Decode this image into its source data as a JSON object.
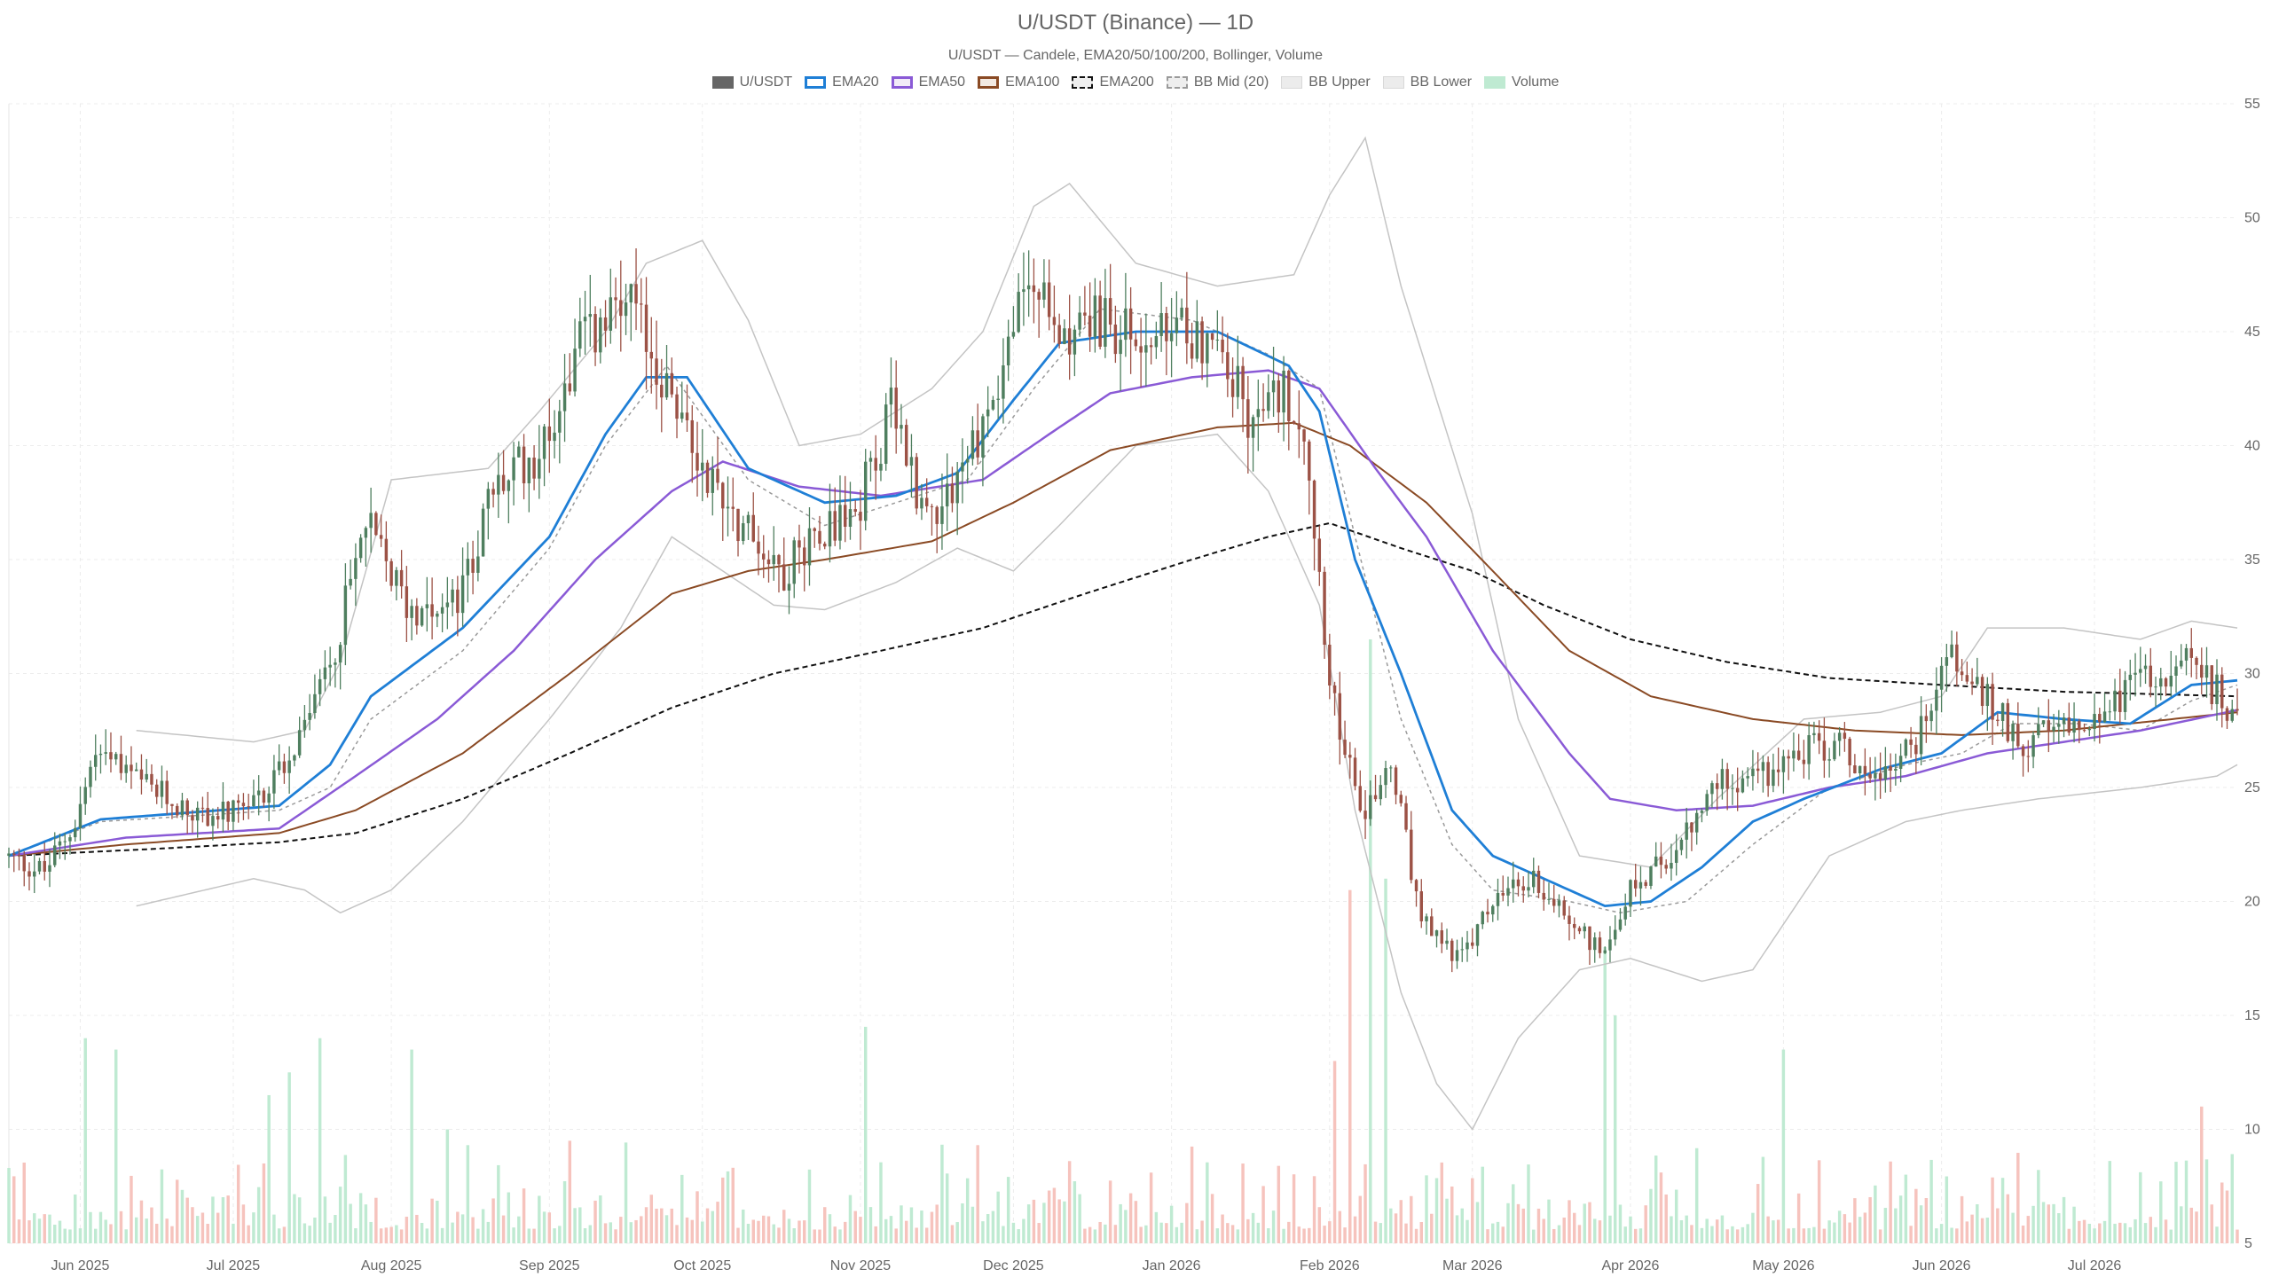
{
  "chart_data": {
    "type": "candlestick",
    "title": "U/USDT (Binance) — 1D",
    "subtitle": "U/USDT — Candele, EMA20/50/100/200, Bollinger, Volume",
    "legend": [
      {
        "name": "U/USDT",
        "color": "#666666",
        "style": "fill"
      },
      {
        "name": "EMA20",
        "color": "#1f7fd6",
        "style": "line"
      },
      {
        "name": "EMA50",
        "color": "#8a5ad6",
        "style": "line"
      },
      {
        "name": "EMA100",
        "color": "#8a4a24",
        "style": "line"
      },
      {
        "name": "EMA200",
        "color": "#111111",
        "style": "dash"
      },
      {
        "name": "BB Mid (20)",
        "color": "#9a9a9a",
        "style": "dash"
      },
      {
        "name": "BB Upper",
        "color": "#bbbbbb",
        "style": "line"
      },
      {
        "name": "BB Lower",
        "color": "#bbbbbb",
        "style": "line"
      },
      {
        "name": "Volume",
        "color": "#bfead2",
        "style": "fill"
      }
    ],
    "x_start": "2025-05-18",
    "x_end": "2026-07-29",
    "xticks": [
      "Jun 2025",
      "Jul 2025",
      "Aug 2025",
      "Sep 2025",
      "Oct 2025",
      "Nov 2025",
      "Dec 2025",
      "Jan 2026",
      "Feb 2026",
      "Mar 2026",
      "Apr 2026",
      "May 2026",
      "Jun 2026",
      "Jul 2026"
    ],
    "xtick_dates": [
      "2025-06-01",
      "2025-07-01",
      "2025-08-01",
      "2025-09-01",
      "2025-10-01",
      "2025-11-01",
      "2025-12-01",
      "2026-01-01",
      "2026-02-01",
      "2026-03-01",
      "2026-04-01",
      "2026-05-01",
      "2026-06-01",
      "2026-07-01"
    ],
    "yticks": [
      5,
      10,
      15,
      20,
      25,
      30,
      35,
      40,
      45,
      50,
      55
    ],
    "ylim": [
      5,
      55
    ],
    "grid": true,
    "legend_position": "top",
    "colors": {
      "up": "#4f7f5f",
      "down": "#9c5246",
      "vol_up": "#bfead2",
      "vol_down": "#f6c3bd"
    },
    "price_anchors": [
      [
        "2025-05-18",
        22.0
      ],
      [
        "2025-05-26",
        21.3
      ],
      [
        "2025-06-01",
        23.5
      ],
      [
        "2025-06-05",
        26.4
      ],
      [
        "2025-06-15",
        25.0
      ],
      [
        "2025-06-25",
        23.8
      ],
      [
        "2025-07-05",
        23.8
      ],
      [
        "2025-07-12",
        26.0
      ],
      [
        "2025-07-20",
        29.5
      ],
      [
        "2025-07-28",
        36.5
      ],
      [
        "2025-08-05",
        33.0
      ],
      [
        "2025-08-15",
        33.0
      ],
      [
        "2025-08-22",
        38.0
      ],
      [
        "2025-09-01",
        40.0
      ],
      [
        "2025-09-08",
        44.5
      ],
      [
        "2025-09-18",
        46.0
      ],
      [
        "2025-09-24",
        43.0
      ],
      [
        "2025-10-01",
        39.5
      ],
      [
        "2025-10-10",
        36.5
      ],
      [
        "2025-10-18",
        34.5
      ],
      [
        "2025-10-25",
        36.5
      ],
      [
        "2025-11-01",
        37.0
      ],
      [
        "2025-11-08",
        41.5
      ],
      [
        "2025-11-15",
        37.0
      ],
      [
        "2025-11-22",
        39.0
      ],
      [
        "2025-11-28",
        42.0
      ],
      [
        "2025-12-05",
        47.5
      ],
      [
        "2025-12-10",
        45.0
      ],
      [
        "2025-12-18",
        45.5
      ],
      [
        "2025-12-28",
        44.5
      ],
      [
        "2026-01-06",
        45.0
      ],
      [
        "2026-01-12",
        44.0
      ],
      [
        "2026-01-18",
        41.0
      ],
      [
        "2026-01-24",
        42.5
      ],
      [
        "2026-01-28",
        41.0
      ],
      [
        "2026-02-02",
        30.0
      ],
      [
        "2026-02-08",
        23.5
      ],
      [
        "2026-02-14",
        26.0
      ],
      [
        "2026-02-20",
        19.0
      ],
      [
        "2026-02-28",
        17.5
      ],
      [
        "2026-03-06",
        20.0
      ],
      [
        "2026-03-14",
        21.0
      ],
      [
        "2026-03-22",
        19.0
      ],
      [
        "2026-03-27",
        17.8
      ],
      [
        "2026-04-02",
        20.5
      ],
      [
        "2026-04-12",
        22.5
      ],
      [
        "2026-04-20",
        25.5
      ],
      [
        "2026-04-28",
        25.5
      ],
      [
        "2026-05-05",
        26.5
      ],
      [
        "2026-05-12",
        27.0
      ],
      [
        "2026-05-20",
        25.5
      ],
      [
        "2026-05-28",
        27.0
      ],
      [
        "2026-06-03",
        31.0
      ],
      [
        "2026-06-10",
        29.0
      ],
      [
        "2026-06-18",
        27.0
      ],
      [
        "2026-06-26",
        27.5
      ],
      [
        "2026-07-05",
        28.5
      ],
      [
        "2026-07-12",
        30.0
      ],
      [
        "2026-07-20",
        30.5
      ],
      [
        "2026-07-29",
        28.5
      ]
    ],
    "ema20": [
      [
        "2025-05-18",
        22.0
      ],
      [
        "2025-06-05",
        23.6
      ],
      [
        "2025-07-10",
        24.2
      ],
      [
        "2025-07-20",
        26.0
      ],
      [
        "2025-07-28",
        29.0
      ],
      [
        "2025-08-15",
        32.0
      ],
      [
        "2025-09-01",
        36.0
      ],
      [
        "2025-09-12",
        40.5
      ],
      [
        "2025-09-20",
        43.0
      ],
      [
        "2025-09-28",
        43.0
      ],
      [
        "2025-10-10",
        39.0
      ],
      [
        "2025-10-25",
        37.5
      ],
      [
        "2025-11-08",
        37.8
      ],
      [
        "2025-11-20",
        38.8
      ],
      [
        "2025-12-01",
        42.0
      ],
      [
        "2025-12-10",
        44.5
      ],
      [
        "2025-12-25",
        45.0
      ],
      [
        "2026-01-10",
        45.0
      ],
      [
        "2026-01-24",
        43.5
      ],
      [
        "2026-01-30",
        41.5
      ],
      [
        "2026-02-06",
        35.0
      ],
      [
        "2026-02-15",
        30.0
      ],
      [
        "2026-02-25",
        24.0
      ],
      [
        "2026-03-05",
        22.0
      ],
      [
        "2026-03-15",
        21.0
      ],
      [
        "2026-03-27",
        19.8
      ],
      [
        "2026-04-05",
        20.0
      ],
      [
        "2026-04-15",
        21.5
      ],
      [
        "2026-04-25",
        23.5
      ],
      [
        "2026-05-05",
        24.5
      ],
      [
        "2026-05-20",
        25.8
      ],
      [
        "2026-06-01",
        26.5
      ],
      [
        "2026-06-12",
        28.3
      ],
      [
        "2026-06-25",
        28.0
      ],
      [
        "2026-07-08",
        27.8
      ],
      [
        "2026-07-20",
        29.5
      ],
      [
        "2026-07-29",
        29.7
      ]
    ],
    "ema50": [
      [
        "2025-05-18",
        22.0
      ],
      [
        "2025-06-10",
        22.8
      ],
      [
        "2025-07-10",
        23.2
      ],
      [
        "2025-07-25",
        25.5
      ],
      [
        "2025-08-10",
        28.0
      ],
      [
        "2025-08-25",
        31.0
      ],
      [
        "2025-09-10",
        35.0
      ],
      [
        "2025-09-25",
        38.0
      ],
      [
        "2025-10-05",
        39.3
      ],
      [
        "2025-10-20",
        38.2
      ],
      [
        "2025-11-05",
        37.8
      ],
      [
        "2025-11-25",
        38.5
      ],
      [
        "2025-12-08",
        40.5
      ],
      [
        "2025-12-20",
        42.3
      ],
      [
        "2026-01-05",
        43.0
      ],
      [
        "2026-01-20",
        43.3
      ],
      [
        "2026-01-30",
        42.5
      ],
      [
        "2026-02-10",
        39.0
      ],
      [
        "2026-02-20",
        36.0
      ],
      [
        "2026-03-05",
        31.0
      ],
      [
        "2026-03-20",
        26.5
      ],
      [
        "2026-03-28",
        24.5
      ],
      [
        "2026-04-10",
        24.0
      ],
      [
        "2026-04-25",
        24.2
      ],
      [
        "2026-05-10",
        25.0
      ],
      [
        "2026-05-25",
        25.5
      ],
      [
        "2026-06-10",
        26.5
      ],
      [
        "2026-06-25",
        27.0
      ],
      [
        "2026-07-10",
        27.5
      ],
      [
        "2026-07-29",
        28.4
      ]
    ],
    "ema100": [
      [
        "2025-05-18",
        22.0
      ],
      [
        "2025-06-10",
        22.5
      ],
      [
        "2025-07-10",
        23.0
      ],
      [
        "2025-07-25",
        24.0
      ],
      [
        "2025-08-15",
        26.5
      ],
      [
        "2025-09-05",
        30.0
      ],
      [
        "2025-09-25",
        33.5
      ],
      [
        "2025-10-10",
        34.5
      ],
      [
        "2025-10-25",
        35.0
      ],
      [
        "2025-11-15",
        35.8
      ],
      [
        "2025-12-01",
        37.5
      ],
      [
        "2025-12-20",
        39.8
      ],
      [
        "2026-01-10",
        40.8
      ],
      [
        "2026-01-25",
        41.0
      ],
      [
        "2026-02-05",
        40.0
      ],
      [
        "2026-02-20",
        37.5
      ],
      [
        "2026-03-05",
        34.5
      ],
      [
        "2026-03-20",
        31.0
      ],
      [
        "2026-04-05",
        29.0
      ],
      [
        "2026-04-25",
        28.0
      ],
      [
        "2026-05-15",
        27.5
      ],
      [
        "2026-06-05",
        27.3
      ],
      [
        "2026-06-25",
        27.5
      ],
      [
        "2026-07-29",
        28.3
      ]
    ],
    "ema200": [
      [
        "2025-05-18",
        22.0
      ],
      [
        "2025-06-15",
        22.3
      ],
      [
        "2025-07-10",
        22.6
      ],
      [
        "2025-07-25",
        23.0
      ],
      [
        "2025-08-15",
        24.5
      ],
      [
        "2025-09-05",
        26.5
      ],
      [
        "2025-09-25",
        28.5
      ],
      [
        "2025-10-15",
        30.0
      ],
      [
        "2025-11-05",
        31.0
      ],
      [
        "2025-11-25",
        32.0
      ],
      [
        "2025-12-15",
        33.5
      ],
      [
        "2026-01-05",
        35.0
      ],
      [
        "2026-01-20",
        36.0
      ],
      [
        "2026-02-01",
        36.6
      ],
      [
        "2026-02-15",
        35.5
      ],
      [
        "2026-03-01",
        34.5
      ],
      [
        "2026-03-15",
        33.0
      ],
      [
        "2026-04-01",
        31.5
      ],
      [
        "2026-04-20",
        30.5
      ],
      [
        "2026-05-10",
        29.8
      ],
      [
        "2026-06-01",
        29.5
      ],
      [
        "2026-06-25",
        29.2
      ],
      [
        "2026-07-29",
        29.0
      ]
    ],
    "bb_mid": [
      [
        "2025-05-18",
        22.0
      ],
      [
        "2025-06-05",
        23.5
      ],
      [
        "2025-07-10",
        24.0
      ],
      [
        "2025-07-20",
        25.0
      ],
      [
        "2025-07-28",
        28.0
      ],
      [
        "2025-08-15",
        31.0
      ],
      [
        "2025-09-01",
        35.5
      ],
      [
        "2025-09-12",
        40.0
      ],
      [
        "2025-09-24",
        43.5
      ],
      [
        "2025-10-10",
        38.5
      ],
      [
        "2025-10-25",
        36.5
      ],
      [
        "2025-11-08",
        37.5
      ],
      [
        "2025-11-22",
        38.5
      ],
      [
        "2025-12-05",
        42.5
      ],
      [
        "2025-12-18",
        46.0
      ],
      [
        "2026-01-05",
        45.5
      ],
      [
        "2026-01-20",
        44.0
      ],
      [
        "2026-01-30",
        42.5
      ],
      [
        "2026-02-06",
        36.0
      ],
      [
        "2026-02-15",
        28.0
      ],
      [
        "2026-02-25",
        22.5
      ],
      [
        "2026-03-05",
        20.5
      ],
      [
        "2026-03-20",
        20.0
      ],
      [
        "2026-03-30",
        19.5
      ],
      [
        "2026-04-12",
        20.0
      ],
      [
        "2026-04-25",
        22.5
      ],
      [
        "2026-05-10",
        25.0
      ],
      [
        "2026-05-25",
        26.0
      ],
      [
        "2026-06-05",
        26.5
      ],
      [
        "2026-06-15",
        27.8
      ],
      [
        "2026-06-28",
        27.8
      ],
      [
        "2026-07-10",
        27.5
      ],
      [
        "2026-07-20",
        28.8
      ],
      [
        "2026-07-29",
        29.5
      ]
    ],
    "bb_upper": [
      [
        "2025-06-12",
        27.5
      ],
      [
        "2025-07-05",
        27.0
      ],
      [
        "2025-07-15",
        27.5
      ],
      [
        "2025-07-22",
        30.5
      ],
      [
        "2025-08-01",
        38.5
      ],
      [
        "2025-08-20",
        39.0
      ],
      [
        "2025-08-30",
        41.5
      ],
      [
        "2025-09-12",
        45.0
      ],
      [
        "2025-09-20",
        48.0
      ],
      [
        "2025-10-01",
        49.0
      ],
      [
        "2025-10-10",
        45.5
      ],
      [
        "2025-10-20",
        40.0
      ],
      [
        "2025-11-01",
        40.5
      ],
      [
        "2025-11-15",
        42.5
      ],
      [
        "2025-11-25",
        45.0
      ],
      [
        "2025-12-05",
        50.5
      ],
      [
        "2025-12-12",
        51.5
      ],
      [
        "2025-12-25",
        48.0
      ],
      [
        "2026-01-10",
        47.0
      ],
      [
        "2026-01-25",
        47.5
      ],
      [
        "2026-02-01",
        51.0
      ],
      [
        "2026-02-08",
        53.5
      ],
      [
        "2026-02-15",
        47.0
      ],
      [
        "2026-02-22",
        42.0
      ],
      [
        "2026-03-01",
        37.0
      ],
      [
        "2026-03-10",
        28.0
      ],
      [
        "2026-03-22",
        22.0
      ],
      [
        "2026-04-05",
        21.5
      ],
      [
        "2026-04-18",
        24.5
      ],
      [
        "2026-05-05",
        28.0
      ],
      [
        "2026-05-20",
        28.3
      ],
      [
        "2026-06-01",
        29.0
      ],
      [
        "2026-06-10",
        32.0
      ],
      [
        "2026-06-25",
        32.0
      ],
      [
        "2026-07-10",
        31.5
      ],
      [
        "2026-07-20",
        32.3
      ],
      [
        "2026-07-29",
        32.0
      ]
    ],
    "bb_lower": [
      [
        "2025-06-12",
        19.8
      ],
      [
        "2025-07-05",
        21.0
      ],
      [
        "2025-07-15",
        20.5
      ],
      [
        "2025-07-22",
        19.5
      ],
      [
        "2025-08-01",
        20.5
      ],
      [
        "2025-08-15",
        23.5
      ],
      [
        "2025-09-01",
        28.0
      ],
      [
        "2025-09-15",
        32.0
      ],
      [
        "2025-09-25",
        36.0
      ],
      [
        "2025-10-05",
        34.5
      ],
      [
        "2025-10-15",
        33.0
      ],
      [
        "2025-10-25",
        32.8
      ],
      [
        "2025-11-08",
        34.0
      ],
      [
        "2025-11-20",
        35.5
      ],
      [
        "2025-12-01",
        34.5
      ],
      [
        "2025-12-10",
        36.5
      ],
      [
        "2025-12-25",
        40.0
      ],
      [
        "2026-01-10",
        40.5
      ],
      [
        "2026-01-20",
        38.0
      ],
      [
        "2026-01-30",
        33.0
      ],
      [
        "2026-02-06",
        24.0
      ],
      [
        "2026-02-15",
        16.0
      ],
      [
        "2026-02-22",
        12.0
      ],
      [
        "2026-03-01",
        10.0
      ],
      [
        "2026-03-10",
        14.0
      ],
      [
        "2026-03-22",
        17.0
      ],
      [
        "2026-04-01",
        17.5
      ],
      [
        "2026-04-15",
        16.5
      ],
      [
        "2026-04-25",
        17.0
      ],
      [
        "2026-05-10",
        22.0
      ],
      [
        "2026-05-25",
        23.5
      ],
      [
        "2026-06-05",
        24.0
      ],
      [
        "2026-06-20",
        24.5
      ],
      [
        "2026-07-10",
        25.0
      ],
      [
        "2026-07-25",
        25.5
      ],
      [
        "2026-07-29",
        26.0
      ]
    ],
    "volume_spikes": [
      [
        "2025-06-02",
        14.0
      ],
      [
        "2025-06-08",
        13.5
      ],
      [
        "2025-07-08",
        11.5
      ],
      [
        "2025-07-12",
        12.5
      ],
      [
        "2025-07-18",
        14.0
      ],
      [
        "2025-08-05",
        13.5
      ],
      [
        "2025-08-12",
        10.0
      ],
      [
        "2025-09-05",
        9.5
      ],
      [
        "2025-11-02",
        14.5
      ],
      [
        "2026-01-15",
        8.5
      ],
      [
        "2026-02-02",
        13.0
      ],
      [
        "2026-02-05",
        20.5
      ],
      [
        "2026-02-09",
        31.5
      ],
      [
        "2026-02-12",
        21.0
      ],
      [
        "2026-03-27",
        18.0
      ],
      [
        "2026-03-29",
        15.0
      ],
      [
        "2026-05-01",
        13.5
      ],
      [
        "2026-07-22",
        11.0
      ]
    ]
  }
}
